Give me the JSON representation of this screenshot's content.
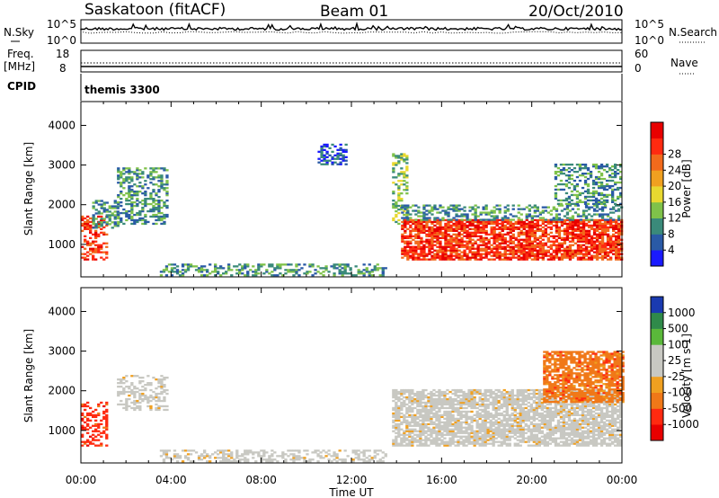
{
  "header": {
    "station": "Saskatoon (fitACF)",
    "beam": "Beam 01",
    "date": "20/Oct/2010"
  },
  "noise_panel": {
    "left_label": "N.Sky",
    "right_label": "N.Search",
    "left_ticks": [
      "10^5",
      "10^0"
    ],
    "right_ticks": [
      "10^5",
      "10^0"
    ]
  },
  "freq_panel": {
    "left_label_1": "Freq.",
    "left_label_2": "[MHz]",
    "right_label": "Nave",
    "left_ticks": [
      "18",
      "8"
    ],
    "right_ticks": [
      "60",
      "0"
    ]
  },
  "cpid_panel": {
    "label": "CPID",
    "program": "themis 3300"
  },
  "chart_data": [
    {
      "type": "heatmap",
      "name": "power",
      "ylabel": "Slant Range [km]",
      "y_ticks": [
        "1000",
        "2000",
        "3000",
        "4000"
      ],
      "ylim": [
        180,
        4600
      ],
      "x_tick_labels": [
        "00:00",
        "04:00",
        "08:00",
        "12:00",
        "16:00",
        "20:00",
        "00:00"
      ],
      "colorbar_label": "Power [dB]",
      "colorbar_ticks": [
        "4",
        "8",
        "12",
        "16",
        "20",
        "24",
        "28"
      ],
      "colorbar_colors": [
        "#1a1aff",
        "#2a5aa6",
        "#3a8a7a",
        "#7fc24a",
        "#e8d830",
        "#f0a020",
        "#f26a1c",
        "#ff2a10",
        "#e80000"
      ],
      "data_regions": [
        {
          "t": [
            0.0,
            1.1
          ],
          "range_km": [
            600,
            1700
          ],
          "level": "28"
        },
        {
          "t": [
            0.5,
            1.6
          ],
          "range_km": [
            1400,
            2100
          ],
          "level": "8"
        },
        {
          "t": [
            1.6,
            3.8
          ],
          "range_km": [
            1500,
            2900
          ],
          "level": "8"
        },
        {
          "t": [
            3.5,
            13.5
          ],
          "range_km": [
            200,
            500
          ],
          "level": "8"
        },
        {
          "t": [
            10.5,
            11.8
          ],
          "range_km": [
            3000,
            3500
          ],
          "level": "4"
        },
        {
          "t": [
            13.8,
            14.5
          ],
          "range_km": [
            1500,
            3300
          ],
          "level": "12"
        },
        {
          "t": [
            14.2,
            24.0
          ],
          "range_km": [
            600,
            1600
          ],
          "level": "28"
        },
        {
          "t": [
            14.2,
            24.0
          ],
          "range_km": [
            1600,
            2000
          ],
          "level": "8"
        },
        {
          "t": [
            21.0,
            24.0
          ],
          "range_km": [
            2000,
            3000
          ],
          "level": "8"
        }
      ]
    },
    {
      "type": "heatmap",
      "name": "velocity",
      "ylabel": "Slant Range [km]",
      "y_ticks": [
        "1000",
        "2000",
        "3000",
        "4000"
      ],
      "ylim": [
        180,
        4600
      ],
      "x_tick_labels": [
        "00:00",
        "04:00",
        "08:00",
        "12:00",
        "16:00",
        "20:00",
        "00:00"
      ],
      "xlabel": "Time UT",
      "colorbar_label": "Velocity [m s-1]",
      "colorbar_ticks": [
        "1000",
        "500",
        "100",
        "25",
        "-25",
        "-100",
        "-500",
        "-1000"
      ],
      "colorbar_colors": [
        "#1a3ab0",
        "#2f8a4a",
        "#5ab83a",
        "#c8c8c2",
        "#c8c8c2",
        "#f0a020",
        "#f07818",
        "#ff2a10",
        "#e80000"
      ],
      "data_regions": [
        {
          "t": [
            0.0,
            1.1
          ],
          "range_km": [
            600,
            1700
          ],
          "level": "-500"
        },
        {
          "t": [
            1.6,
            3.8
          ],
          "range_km": [
            1500,
            2400
          ],
          "level": "25"
        },
        {
          "t": [
            3.5,
            13.5
          ],
          "range_km": [
            200,
            500
          ],
          "level": "25"
        },
        {
          "t": [
            13.8,
            24.0
          ],
          "range_km": [
            600,
            2000
          ],
          "level": "25"
        },
        {
          "t": [
            20.5,
            24.0
          ],
          "range_km": [
            1700,
            3000
          ],
          "level": "-100"
        }
      ]
    }
  ]
}
